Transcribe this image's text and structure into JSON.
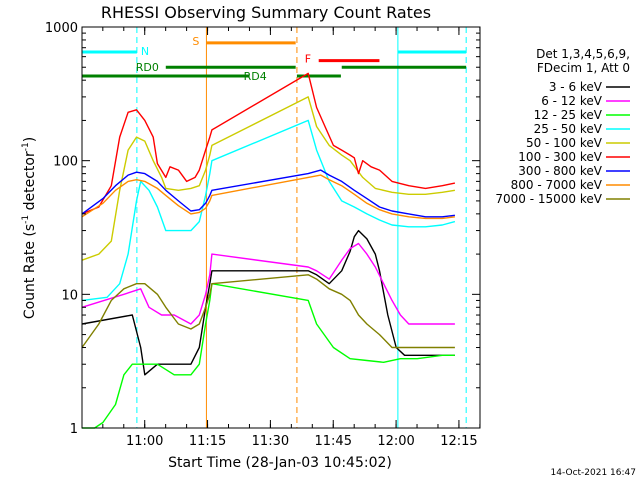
{
  "chart_data": {
    "type": "line",
    "title": "RHESSI Observing Summary Count Rates",
    "xlabel": "Start Time (28-Jan-03 10:45:02)",
    "ylabel_parts": [
      "Count Rate (s",
      "-1",
      " detector",
      "-1",
      ")"
    ],
    "y_scale": "log",
    "ylim": [
      1,
      1000
    ],
    "xlim_minutes": [
      0,
      95
    ],
    "y_ticks": [
      {
        "value": 1,
        "label": "1"
      },
      {
        "value": 10,
        "label": "10"
      },
      {
        "value": 100,
        "label": "100"
      },
      {
        "value": 1000,
        "label": "1000"
      }
    ],
    "x_ticks": [
      {
        "minute": 14.97,
        "label": "11:00"
      },
      {
        "minute": 29.97,
        "label": "11:15"
      },
      {
        "minute": 44.97,
        "label": "11:30"
      },
      {
        "minute": 59.97,
        "label": "11:45"
      },
      {
        "minute": 74.97,
        "label": "12:00"
      },
      {
        "minute": 89.97,
        "label": "12:15"
      }
    ],
    "legend_header": [
      "Det 1,3,4,5,6,9,",
      "FDecim 1, Att 0"
    ],
    "legend_position": "right",
    "series": [
      {
        "name": "3 - 6 keV",
        "color": "#000000",
        "points": [
          [
            0,
            6
          ],
          [
            12,
            7
          ],
          [
            14,
            4
          ],
          [
            15,
            2.5
          ],
          [
            18,
            3
          ],
          [
            22,
            3
          ],
          [
            26,
            3
          ],
          [
            28,
            4
          ],
          [
            29.5,
            8
          ],
          [
            30.5,
            12
          ],
          [
            31,
            15
          ],
          [
            54,
            15
          ],
          [
            56,
            14
          ],
          [
            59,
            12
          ],
          [
            62,
            15
          ],
          [
            64,
            21
          ],
          [
            65,
            27
          ],
          [
            66,
            30
          ],
          [
            68,
            26
          ],
          [
            70,
            20
          ],
          [
            71,
            15
          ],
          [
            73,
            7
          ],
          [
            75,
            4
          ],
          [
            77,
            3.5
          ],
          [
            86,
            3.5
          ],
          [
            89,
            3.5
          ]
        ]
      },
      {
        "name": "6 - 12 keV",
        "color": "#ff00ff",
        "points": [
          [
            0,
            8
          ],
          [
            10,
            10
          ],
          [
            14,
            11
          ],
          [
            16,
            8
          ],
          [
            19,
            7
          ],
          [
            22,
            7
          ],
          [
            26,
            6
          ],
          [
            28,
            7
          ],
          [
            29.5,
            10
          ],
          [
            30.5,
            14
          ],
          [
            31,
            20
          ],
          [
            54,
            16
          ],
          [
            56,
            15
          ],
          [
            59,
            13
          ],
          [
            62,
            18
          ],
          [
            64,
            22
          ],
          [
            66,
            24
          ],
          [
            68,
            20
          ],
          [
            70,
            16
          ],
          [
            72,
            12
          ],
          [
            74,
            9
          ],
          [
            76,
            7
          ],
          [
            78,
            6
          ],
          [
            80,
            6
          ],
          [
            86,
            6
          ],
          [
            89,
            6
          ]
        ]
      },
      {
        "name": "12 - 25 keV",
        "color": "#00ff00",
        "points": [
          [
            0,
            1
          ],
          [
            3,
            1
          ],
          [
            5,
            1.1
          ],
          [
            8,
            1.5
          ],
          [
            10,
            2.5
          ],
          [
            12,
            3
          ],
          [
            15,
            3
          ],
          [
            18,
            3
          ],
          [
            22,
            2.5
          ],
          [
            26,
            2.5
          ],
          [
            28,
            3
          ],
          [
            29.5,
            6
          ],
          [
            30.5,
            9
          ],
          [
            31,
            12
          ],
          [
            54,
            9
          ],
          [
            56,
            6
          ],
          [
            60,
            4
          ],
          [
            64,
            3.3
          ],
          [
            68,
            3.2
          ],
          [
            72,
            3.1
          ],
          [
            76,
            3.3
          ],
          [
            80,
            3.3
          ],
          [
            86,
            3.5
          ],
          [
            89,
            3.5
          ]
        ]
      },
      {
        "name": "25 - 50 keV",
        "color": "#00ffff",
        "points": [
          [
            0,
            9
          ],
          [
            6,
            9.5
          ],
          [
            9,
            12
          ],
          [
            11,
            20
          ],
          [
            13,
            50
          ],
          [
            14,
            70
          ],
          [
            16,
            60
          ],
          [
            18,
            45
          ],
          [
            20,
            30
          ],
          [
            22,
            30
          ],
          [
            24,
            30
          ],
          [
            26,
            30
          ],
          [
            28,
            35
          ],
          [
            29.5,
            55
          ],
          [
            30.5,
            80
          ],
          [
            31,
            100
          ],
          [
            54,
            200
          ],
          [
            56,
            120
          ],
          [
            59,
            70
          ],
          [
            62,
            50
          ],
          [
            65,
            45
          ],
          [
            68,
            40
          ],
          [
            71,
            36
          ],
          [
            74,
            33
          ],
          [
            78,
            32
          ],
          [
            82,
            32
          ],
          [
            86,
            33
          ],
          [
            89,
            35
          ]
        ]
      },
      {
        "name": "50 - 100 keV",
        "color": "#cccc00",
        "points": [
          [
            0,
            18
          ],
          [
            4,
            20
          ],
          [
            7,
            25
          ],
          [
            9,
            60
          ],
          [
            11,
            120
          ],
          [
            13,
            150
          ],
          [
            15,
            140
          ],
          [
            17,
            100
          ],
          [
            19,
            75
          ],
          [
            20,
            62
          ],
          [
            23,
            60
          ],
          [
            26,
            62
          ],
          [
            28,
            65
          ],
          [
            29.5,
            85
          ],
          [
            30.5,
            110
          ],
          [
            31,
            130
          ],
          [
            54,
            300
          ],
          [
            56,
            180
          ],
          [
            59,
            130
          ],
          [
            62,
            110
          ],
          [
            64,
            100
          ],
          [
            67,
            75
          ],
          [
            70,
            62
          ],
          [
            74,
            58
          ],
          [
            78,
            56
          ],
          [
            82,
            56
          ],
          [
            86,
            58
          ],
          [
            89,
            60
          ]
        ]
      },
      {
        "name": "100 - 300 keV",
        "color": "#ff0000",
        "points": [
          [
            0,
            40
          ],
          [
            4,
            45
          ],
          [
            7,
            65
          ],
          [
            9,
            150
          ],
          [
            11,
            230
          ],
          [
            13,
            240
          ],
          [
            15,
            200
          ],
          [
            17,
            150
          ],
          [
            18,
            95
          ],
          [
            20,
            75
          ],
          [
            21,
            90
          ],
          [
            23,
            85
          ],
          [
            25,
            70
          ],
          [
            27,
            75
          ],
          [
            28,
            85
          ],
          [
            29.5,
            120
          ],
          [
            30.5,
            150
          ],
          [
            31,
            170
          ],
          [
            54,
            450
          ],
          [
            56,
            250
          ],
          [
            58,
            180
          ],
          [
            60,
            130
          ],
          [
            62,
            120
          ],
          [
            64,
            110
          ],
          [
            65,
            105
          ],
          [
            66,
            80
          ],
          [
            67,
            100
          ],
          [
            69,
            90
          ],
          [
            71,
            85
          ],
          [
            74,
            70
          ],
          [
            78,
            65
          ],
          [
            82,
            62
          ],
          [
            86,
            65
          ],
          [
            89,
            68
          ]
        ]
      },
      {
        "name": "300 - 800 keV",
        "color": "#0000ff",
        "points": [
          [
            0,
            40
          ],
          [
            5,
            52
          ],
          [
            8,
            65
          ],
          [
            11,
            78
          ],
          [
            13,
            82
          ],
          [
            15,
            80
          ],
          [
            18,
            70
          ],
          [
            20,
            60
          ],
          [
            23,
            50
          ],
          [
            26,
            42
          ],
          [
            28,
            43
          ],
          [
            29.5,
            48
          ],
          [
            30.5,
            55
          ],
          [
            31,
            60
          ],
          [
            54,
            80
          ],
          [
            57,
            85
          ],
          [
            59,
            78
          ],
          [
            62,
            70
          ],
          [
            65,
            60
          ],
          [
            68,
            52
          ],
          [
            71,
            45
          ],
          [
            74,
            42
          ],
          [
            78,
            40
          ],
          [
            82,
            38
          ],
          [
            86,
            38
          ],
          [
            89,
            39
          ]
        ]
      },
      {
        "name": "800 - 7000 keV",
        "color": "#ff8c00",
        "points": [
          [
            0,
            38
          ],
          [
            5,
            48
          ],
          [
            8,
            60
          ],
          [
            11,
            70
          ],
          [
            13,
            72
          ],
          [
            15,
            70
          ],
          [
            18,
            62
          ],
          [
            20,
            55
          ],
          [
            23,
            46
          ],
          [
            26,
            40
          ],
          [
            28,
            41
          ],
          [
            29.5,
            44
          ],
          [
            30.5,
            50
          ],
          [
            31,
            55
          ],
          [
            54,
            75
          ],
          [
            57,
            78
          ],
          [
            59,
            72
          ],
          [
            62,
            65
          ],
          [
            65,
            56
          ],
          [
            68,
            48
          ],
          [
            71,
            43
          ],
          [
            74,
            40
          ],
          [
            78,
            38
          ],
          [
            82,
            37
          ],
          [
            86,
            37
          ],
          [
            89,
            38
          ]
        ]
      },
      {
        "name": "7000 - 15000 keV",
        "color": "#808000",
        "points": [
          [
            0,
            4
          ],
          [
            4,
            6
          ],
          [
            7,
            9
          ],
          [
            10,
            11
          ],
          [
            13,
            12
          ],
          [
            15,
            12
          ],
          [
            18,
            10
          ],
          [
            20,
            8
          ],
          [
            23,
            6
          ],
          [
            26,
            5.5
          ],
          [
            28,
            6
          ],
          [
            29.5,
            8
          ],
          [
            30.5,
            10
          ],
          [
            31,
            12
          ],
          [
            54,
            14
          ],
          [
            56,
            13
          ],
          [
            59,
            11
          ],
          [
            62,
            10
          ],
          [
            64,
            9
          ],
          [
            66,
            7
          ],
          [
            68,
            6
          ],
          [
            71,
            5
          ],
          [
            74,
            4
          ],
          [
            78,
            4
          ],
          [
            82,
            4
          ],
          [
            86,
            4
          ],
          [
            89,
            4
          ]
        ]
      }
    ],
    "annotations": [
      {
        "label": "N",
        "color": "#00ffff",
        "segments": [
          [
            0,
            13.1
          ],
          [
            75.4,
            91.7
          ]
        ],
        "level": 650
      },
      {
        "label": "S",
        "color": "#ff8c00",
        "segments": [
          [
            29.7,
            51
          ]
        ],
        "level": 760
      },
      {
        "label": "F",
        "color": "#ff0000",
        "segments": [
          [
            56.5,
            71
          ]
        ],
        "level": 560
      },
      {
        "label": "RD0",
        "color": "#008000",
        "segments": [
          [
            20,
            51
          ],
          [
            62,
            91.7
          ]
        ],
        "level": 500
      },
      {
        "label": "RD4",
        "color": "#008000",
        "segments": [
          [
            0,
            40
          ],
          [
            51.3,
            61.8
          ]
        ],
        "level": 430
      }
    ],
    "vlines": [
      {
        "minute": 13.1,
        "color": "#00ffff",
        "dashed": true
      },
      {
        "minute": 29.7,
        "color": "#ff8c00",
        "dashed": false
      },
      {
        "minute": 51.3,
        "color": "#ff8c00",
        "dashed": true
      },
      {
        "minute": 75.4,
        "color": "#00ffff",
        "dashed": false
      },
      {
        "minute": 91.7,
        "color": "#00ffff",
        "dashed": true
      }
    ],
    "footer_timestamp": "14-Oct-2021 16:47"
  }
}
